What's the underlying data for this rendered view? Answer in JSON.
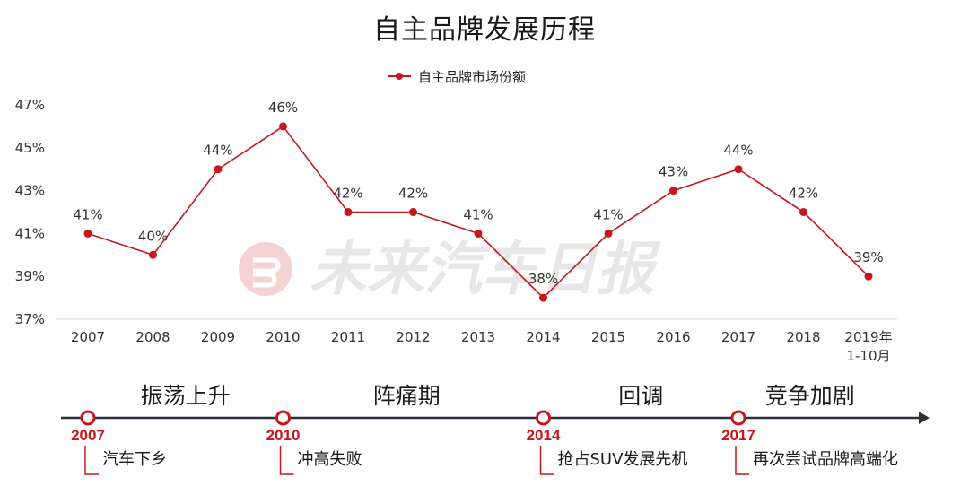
{
  "title": "自主品牌发展历程",
  "watermark": {
    "text": "未来汽车日报",
    "icon": "brand-logo-icon"
  },
  "chart_data": {
    "type": "line",
    "title": "自主品牌发展历程",
    "categories": [
      "2007",
      "2008",
      "2009",
      "2010",
      "2011",
      "2012",
      "2013",
      "2014",
      "2015",
      "2016",
      "2017",
      "2018",
      "2019年\n1-10月"
    ],
    "series": [
      {
        "name": "自主品牌市场份额",
        "values": [
          41,
          40,
          44,
          46,
          42,
          42,
          41,
          38,
          41,
          43,
          44,
          42,
          39
        ],
        "labels": [
          "41%",
          "40%",
          "44%",
          "46%",
          "42%",
          "42%",
          "41%",
          "38%",
          "41%",
          "43%",
          "44%",
          "42%",
          "39%"
        ],
        "color": "#c8161d"
      }
    ],
    "yticks": [
      37,
      39,
      41,
      43,
      45,
      47
    ],
    "ytick_labels": [
      "37%",
      "39%",
      "41%",
      "43%",
      "45%",
      "47%"
    ],
    "ylim": [
      37,
      47
    ],
    "xlabel": "",
    "ylabel": "",
    "legend_position": "top-center",
    "grid": false
  },
  "timeline": {
    "phases": [
      {
        "label": "振荡上升",
        "center_x": 2008.5
      },
      {
        "label": "阵痛期",
        "center_x": 2011.9
      },
      {
        "label": "回调",
        "center_x": 2015.5
      },
      {
        "label": "竞争加剧",
        "center_x": 2018.1
      }
    ],
    "milestones": [
      {
        "year": "2007",
        "event": "汽车下乡",
        "at": 2007
      },
      {
        "year": "2010",
        "event": "冲高失败",
        "at": 2010
      },
      {
        "year": "2014",
        "event": "抢占SUV发展先机",
        "at": 2014
      },
      {
        "year": "2017",
        "event": "再次尝试品牌高端化",
        "at": 2017
      }
    ],
    "line_color": "#2b2f3a",
    "accent_color": "#c8161d"
  }
}
